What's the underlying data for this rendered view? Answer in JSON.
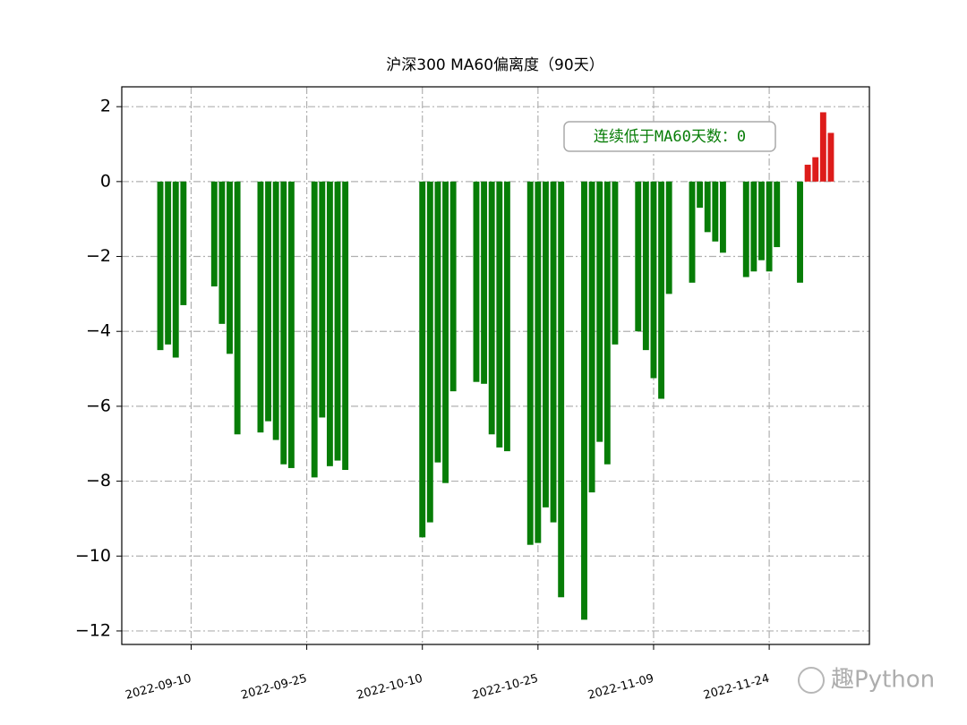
{
  "chart_data": {
    "type": "bar",
    "title": "沪深300 MA60偏离度（90天）",
    "annotation": "连续低于MA60天数：0",
    "watermark": "趣Python",
    "x": [
      "2022-09-06",
      "2022-09-07",
      "2022-09-08",
      "2022-09-09",
      "2022-09-13",
      "2022-09-14",
      "2022-09-15",
      "2022-09-16",
      "2022-09-19",
      "2022-09-20",
      "2022-09-21",
      "2022-09-22",
      "2022-09-23",
      "2022-09-26",
      "2022-09-27",
      "2022-09-28",
      "2022-09-29",
      "2022-09-30",
      "2022-10-10",
      "2022-10-11",
      "2022-10-12",
      "2022-10-13",
      "2022-10-14",
      "2022-10-17",
      "2022-10-18",
      "2022-10-19",
      "2022-10-20",
      "2022-10-21",
      "2022-10-24",
      "2022-10-25",
      "2022-10-26",
      "2022-10-27",
      "2022-10-28",
      "2022-10-31",
      "2022-11-01",
      "2022-11-02",
      "2022-11-03",
      "2022-11-04",
      "2022-11-07",
      "2022-11-08",
      "2022-11-09",
      "2022-11-10",
      "2022-11-11",
      "2022-11-14",
      "2022-11-15",
      "2022-11-16",
      "2022-11-17",
      "2022-11-18",
      "2022-11-21",
      "2022-11-22",
      "2022-11-23",
      "2022-11-24",
      "2022-11-25",
      "2022-11-28",
      "2022-11-29",
      "2022-11-30",
      "2022-12-01",
      "2022-12-02"
    ],
    "values": [
      -4.5,
      -4.35,
      -4.7,
      -3.3,
      -2.8,
      -3.8,
      -4.6,
      -6.75,
      -6.7,
      -6.4,
      -6.9,
      -7.55,
      -7.65,
      -7.9,
      -6.3,
      -7.6,
      -7.45,
      -7.7,
      -9.5,
      -9.1,
      -7.5,
      -8.05,
      -5.6,
      -5.35,
      -5.4,
      -6.75,
      -7.1,
      -7.2,
      -9.7,
      -9.65,
      -8.7,
      -9.1,
      -11.1,
      -11.7,
      -8.3,
      -6.95,
      -7.55,
      -4.35,
      -4.0,
      -4.5,
      -5.25,
      -5.8,
      -3.0,
      -2.7,
      -0.7,
      -1.35,
      -1.6,
      -1.9,
      -2.55,
      -2.4,
      -2.1,
      -2.4,
      -1.75,
      -2.7,
      0.45,
      0.65,
      1.85,
      1.3
    ],
    "color_positive": "#dd1c1a",
    "color_negative": "#077d07",
    "xlim": [
      "2022-09-01",
      "2022-12-07"
    ],
    "xticks": [
      "2022-09-10",
      "2022-09-25",
      "2022-10-10",
      "2022-10-25",
      "2022-11-09",
      "2022-11-24"
    ],
    "ylim": [
      -12.36,
      2.53
    ],
    "yticks": [
      {
        "value": -12,
        "label": "−12"
      },
      {
        "value": -10,
        "label": "−10"
      },
      {
        "value": -8,
        "label": "−8"
      },
      {
        "value": -6,
        "label": "−6"
      },
      {
        "value": -4,
        "label": "−4"
      },
      {
        "value": -2,
        "label": "−2"
      },
      0,
      2
    ],
    "grid": true
  }
}
